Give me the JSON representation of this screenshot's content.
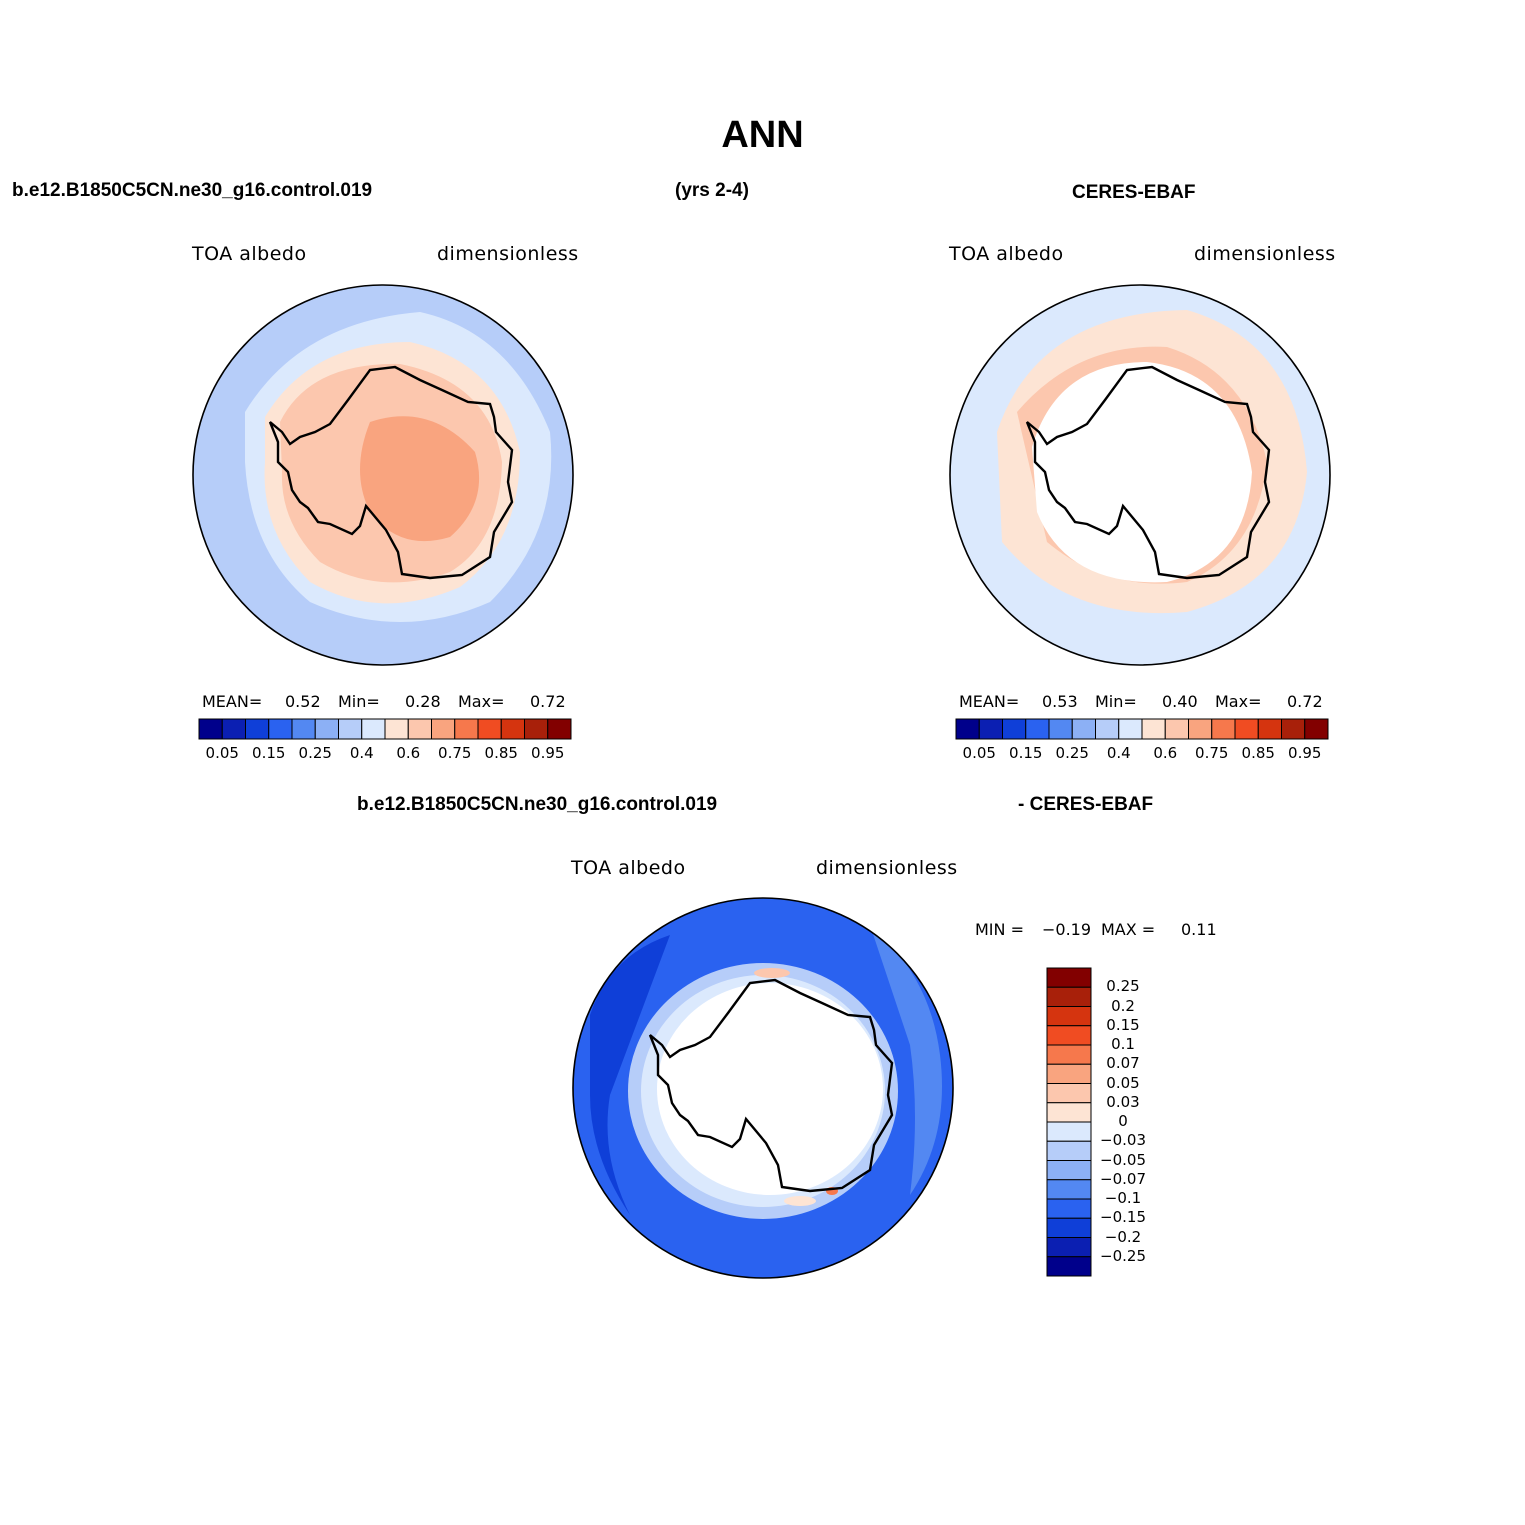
{
  "title": "ANN",
  "header": {
    "case_name": "b.e12.B1850C5CN.ne30_g16.control.019",
    "years": "(yrs 2-4)",
    "obs_name": "CERES-EBAF"
  },
  "panel_model": {
    "variable": "TOA  albedo",
    "units": "dimensionless",
    "mean_label": "MEAN=",
    "mean_value": "0.52",
    "min_label": "Min=",
    "min_value": "0.28",
    "max_label": "Max=",
    "max_value": "0.72"
  },
  "panel_obs": {
    "variable": "TOA  albedo",
    "units": "dimensionless",
    "mean_label": "MEAN=",
    "mean_value": "0.53",
    "min_label": "Min=",
    "min_value": "0.40",
    "max_label": "Max=",
    "max_value": "0.72"
  },
  "panel_diff": {
    "title_left": "b.e12.B1850C5CN.ne30_g16.control.019",
    "title_right": "- CERES-EBAF",
    "variable": "TOA  albedo",
    "units": "dimensionless",
    "min_label": "MIN =",
    "min_value": "−0.19",
    "max_label": "MAX =",
    "max_value": "0.11"
  },
  "colorbar_abs": {
    "colors": [
      "#00008b",
      "#0b1fb2",
      "#0f3fd8",
      "#2a62f0",
      "#5388f2",
      "#8cb0f5",
      "#b6cdf9",
      "#dbe9fd",
      "#fde4d4",
      "#fcc7ae",
      "#f9a47f",
      "#f6784c",
      "#f04c22",
      "#d5340f",
      "#a8200a",
      "#820000"
    ],
    "labels": [
      "0.05",
      "0.15",
      "0.25",
      "0.4",
      "0.6",
      "0.75",
      "0.85",
      "0.95"
    ]
  },
  "colorbar_diff": {
    "colors": [
      "#820000",
      "#a8200a",
      "#d5340f",
      "#f04c22",
      "#f6784c",
      "#f9a47f",
      "#fcc7ae",
      "#fde4d4",
      "#dbe9fd",
      "#b6cdf9",
      "#8cb0f5",
      "#5388f2",
      "#2a62f0",
      "#0f3fd8",
      "#0b1fb2",
      "#00008b"
    ],
    "labels": [
      "0.25",
      "0.2",
      "0.15",
      "0.1",
      "0.07",
      "0.05",
      "0.03",
      "0",
      "−0.03",
      "−0.05",
      "−0.07",
      "−0.1",
      "−0.15",
      "−0.2",
      "−0.25"
    ]
  },
  "map_colors": {
    "ocean_far": "#b6cdf9",
    "ocean_mid": "#dbe9fd",
    "ice_edge": "#fde4d4",
    "land_high": "#fcc7ae",
    "plateau": "#f9a47f",
    "diff_base": "#2a62f0",
    "diff_strong": "#0f3fd8",
    "diff_weak": "#5388f2",
    "diff_pale": "#b6cdf9"
  }
}
